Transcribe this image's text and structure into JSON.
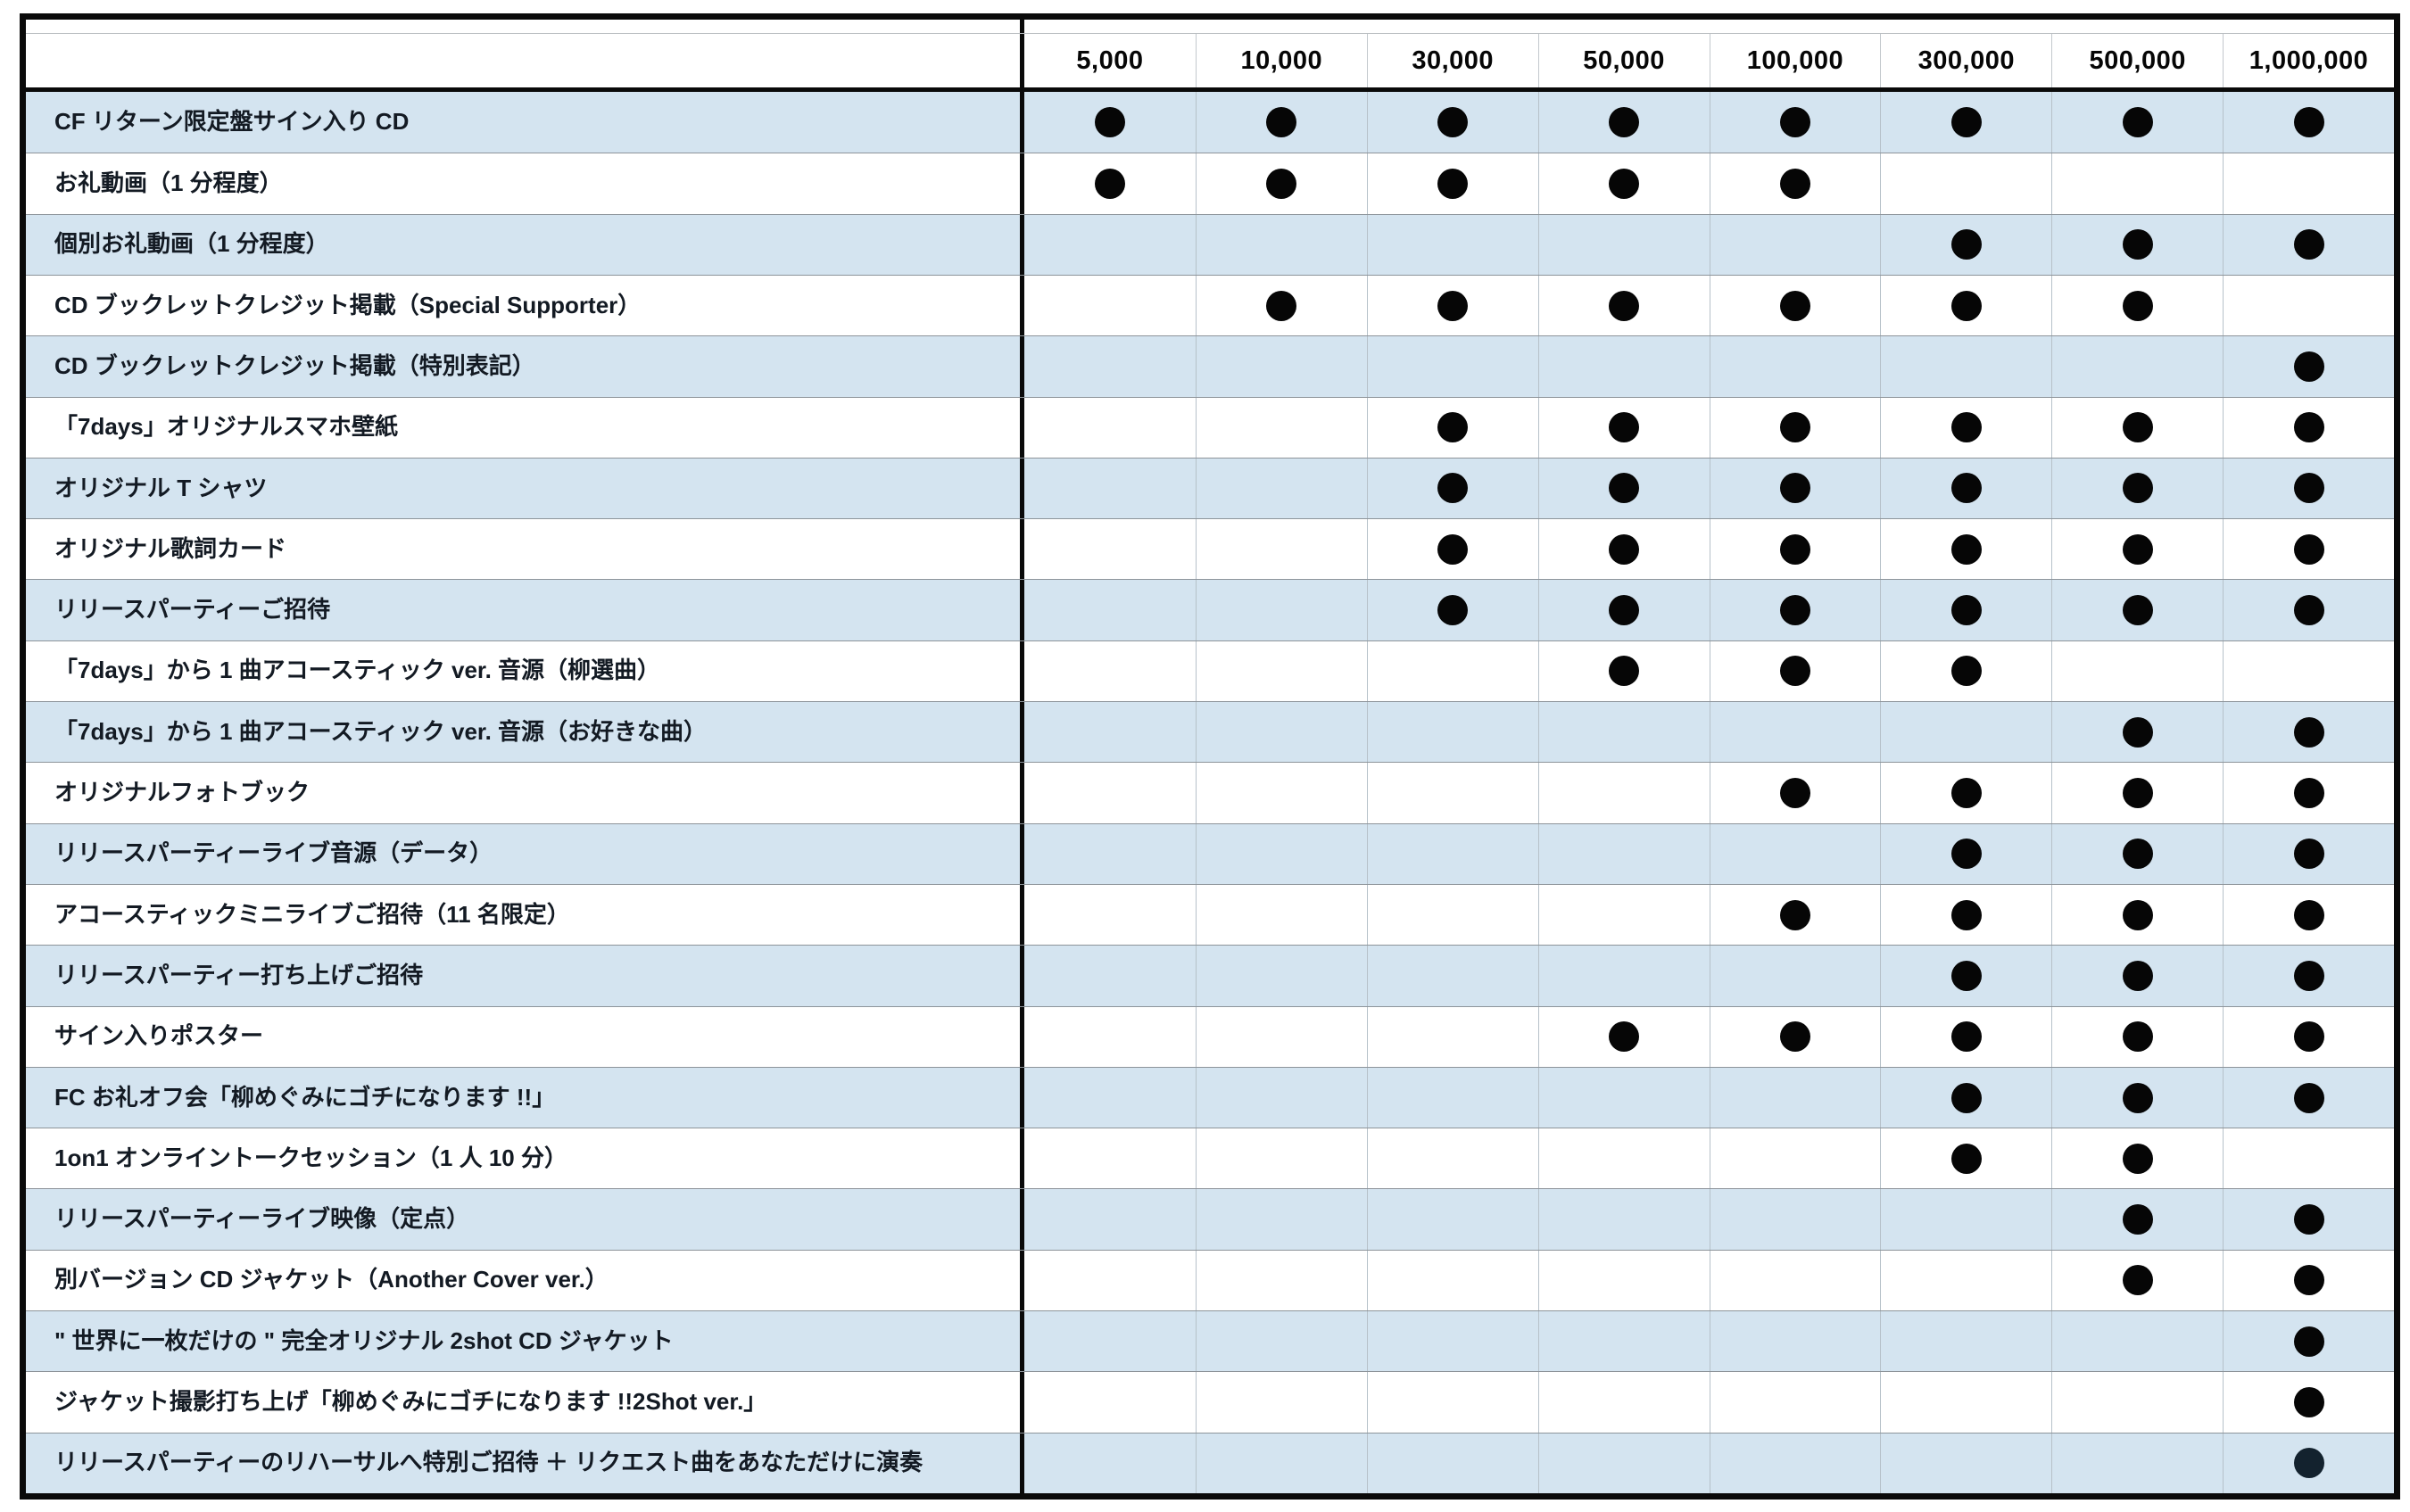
{
  "chart_data": {
    "type": "table",
    "title": "",
    "columns": [
      "5,000",
      "10,000",
      "30,000",
      "50,000",
      "100,000",
      "300,000",
      "500,000",
      "1,000,000"
    ],
    "mark_glyph": "●",
    "dot_color": "#060606",
    "rows": [
      {
        "label": "CF リターン限定盤サイン入り CD",
        "marks": [
          1,
          1,
          1,
          1,
          1,
          1,
          1,
          1
        ]
      },
      {
        "label": "お礼動画（1 分程度）",
        "marks": [
          1,
          1,
          1,
          1,
          1,
          0,
          0,
          0
        ]
      },
      {
        "label": "個別お礼動画（1 分程度）",
        "marks": [
          0,
          0,
          0,
          0,
          0,
          1,
          1,
          1
        ]
      },
      {
        "label": "CD ブックレットクレジット掲載（Special Supporter）",
        "marks": [
          0,
          1,
          1,
          1,
          1,
          1,
          1,
          0
        ]
      },
      {
        "label": "CD ブックレットクレジット掲載（特別表記）",
        "marks": [
          0,
          0,
          0,
          0,
          0,
          0,
          0,
          1
        ]
      },
      {
        "label": "「7days」オリジナルスマホ壁紙",
        "marks": [
          0,
          0,
          1,
          1,
          1,
          1,
          1,
          1
        ]
      },
      {
        "label": "オリジナル T シャツ",
        "marks": [
          0,
          0,
          1,
          1,
          1,
          1,
          1,
          1
        ]
      },
      {
        "label": "オリジナル歌詞カード",
        "marks": [
          0,
          0,
          1,
          1,
          1,
          1,
          1,
          1
        ]
      },
      {
        "label": "リリースパーティーご招待",
        "marks": [
          0,
          0,
          1,
          1,
          1,
          1,
          1,
          1
        ]
      },
      {
        "label": "「7days」から 1 曲アコースティック ver. 音源（柳選曲）",
        "marks": [
          0,
          0,
          0,
          1,
          1,
          1,
          0,
          0
        ]
      },
      {
        "label": "「7days」から 1 曲アコースティック ver. 音源（お好きな曲）",
        "marks": [
          0,
          0,
          0,
          0,
          0,
          0,
          1,
          1
        ]
      },
      {
        "label": "オリジナルフォトブック",
        "marks": [
          0,
          0,
          0,
          0,
          1,
          1,
          1,
          1
        ]
      },
      {
        "label": "リリースパーティーライブ音源（データ）",
        "marks": [
          0,
          0,
          0,
          0,
          0,
          1,
          1,
          1
        ]
      },
      {
        "label": "アコースティックミニライブご招待（11 名限定）",
        "marks": [
          0,
          0,
          0,
          0,
          1,
          1,
          1,
          1
        ]
      },
      {
        "label": "リリースパーティー打ち上げご招待",
        "marks": [
          0,
          0,
          0,
          0,
          0,
          1,
          1,
          1
        ]
      },
      {
        "label": "サイン入りポスター",
        "marks": [
          0,
          0,
          0,
          1,
          1,
          1,
          1,
          1
        ]
      },
      {
        "label": "FC お礼オフ会「柳めぐみにゴチになります !!」",
        "marks": [
          0,
          0,
          0,
          0,
          0,
          1,
          1,
          1
        ]
      },
      {
        "label": "1on1 オンライントークセッション（1 人 10 分）",
        "marks": [
          0,
          0,
          0,
          0,
          0,
          1,
          1,
          0
        ]
      },
      {
        "label": "リリースパーティーライブ映像（定点）",
        "marks": [
          0,
          0,
          0,
          0,
          0,
          0,
          1,
          1
        ]
      },
      {
        "label": "別バージョン CD ジャケット（Another Cover ver.）",
        "marks": [
          0,
          0,
          0,
          0,
          0,
          0,
          1,
          1
        ]
      },
      {
        "label": "\" 世界に一枚だけの \" 完全オリジナル 2shot CD ジャケット",
        "marks": [
          0,
          0,
          0,
          0,
          0,
          0,
          0,
          1
        ]
      },
      {
        "label": "ジャケット撮影打ち上げ「柳めぐみにゴチになります !!2Shot ver.」",
        "marks": [
          0,
          0,
          0,
          0,
          0,
          0,
          0,
          1
        ]
      },
      {
        "label": "リリースパーティーのリハーサルへ特別ご招待 ＋ リクエスト曲をあなただけに演奏",
        "marks": [
          0,
          0,
          0,
          0,
          0,
          0,
          0,
          1
        ],
        "dot_color": "#13222e"
      }
    ],
    "colors": {
      "row_alt_background": "#d4e4f0",
      "row_background": "#ffffff",
      "frame": "#0a0a0a",
      "text": "#131a23"
    },
    "layout": {
      "alternating_rows_start": "blue",
      "header_position": "top",
      "label_column_position": "left"
    }
  }
}
